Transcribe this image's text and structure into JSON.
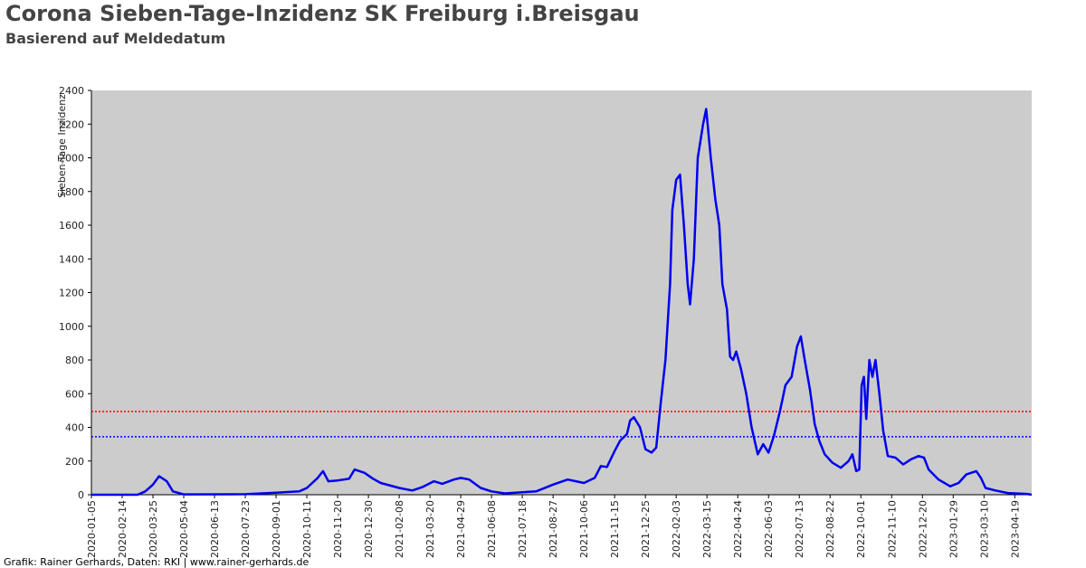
{
  "chart_data": {
    "type": "line",
    "title": "Corona Sieben-Tage-Inzidenz SK Freiburg i.Breisgau",
    "subtitle": "Basierend auf Meldedatum",
    "y_label": "Sieben-Tage Inzidenz",
    "footer": "Grafik: Rainer Gerhards, Daten: RKI | www.rainer-gerhards.de",
    "background": "#cccccc",
    "xlim": [
      "2020-01-05",
      "2023-05-11"
    ],
    "xticks": [
      "2020-01-05",
      "2020-02-14",
      "2020-03-25",
      "2020-05-04",
      "2020-06-13",
      "2020-07-23",
      "2020-09-01",
      "2020-10-11",
      "2020-11-20",
      "2020-12-30",
      "2021-02-08",
      "2021-03-20",
      "2021-04-29",
      "2021-06-08",
      "2021-07-18",
      "2021-08-27",
      "2021-10-06",
      "2021-11-15",
      "2021-12-25",
      "2022-02-03",
      "2022-03-15",
      "2022-04-24",
      "2022-06-03",
      "2022-07-13",
      "2022-08-22",
      "2022-10-01",
      "2022-11-10",
      "2022-12-20",
      "2023-01-29",
      "2023-03-10",
      "2023-04-19"
    ],
    "ylim": [
      0,
      2400
    ],
    "yticks": [
      0,
      200,
      400,
      600,
      800,
      1000,
      1200,
      1400,
      1600,
      1800,
      2000,
      2200,
      2400
    ],
    "reference_lines": [
      {
        "value": 494,
        "color": "#ff0000"
      },
      {
        "value": 344,
        "color": "#0000ff"
      }
    ],
    "x": [
      "2020-01-05",
      "2020-03-05",
      "2020-03-15",
      "2020-03-25",
      "2020-04-02",
      "2020-04-12",
      "2020-04-20",
      "2020-05-04",
      "2020-07-23",
      "2020-09-01",
      "2020-10-01",
      "2020-10-11",
      "2020-10-25",
      "2020-11-01",
      "2020-11-08",
      "2020-11-20",
      "2020-12-05",
      "2020-12-12",
      "2020-12-25",
      "2021-01-05",
      "2021-01-15",
      "2021-02-08",
      "2021-02-25",
      "2021-03-10",
      "2021-03-25",
      "2021-04-05",
      "2021-04-20",
      "2021-04-29",
      "2021-05-10",
      "2021-05-25",
      "2021-06-08",
      "2021-06-25",
      "2021-07-18",
      "2021-08-05",
      "2021-08-27",
      "2021-09-15",
      "2021-10-06",
      "2021-10-20",
      "2021-10-28",
      "2021-11-05",
      "2021-11-15",
      "2021-11-22",
      "2021-12-01",
      "2021-12-05",
      "2021-12-10",
      "2021-12-18",
      "2021-12-25",
      "2022-01-02",
      "2022-01-08",
      "2022-01-14",
      "2022-01-20",
      "2022-01-26",
      "2022-01-29",
      "2022-02-03",
      "2022-02-08",
      "2022-02-13",
      "2022-02-18",
      "2022-02-21",
      "2022-02-26",
      "2022-03-03",
      "2022-03-10",
      "2022-03-14",
      "2022-03-20",
      "2022-03-26",
      "2022-03-31",
      "2022-04-04",
      "2022-04-10",
      "2022-04-14",
      "2022-04-18",
      "2022-04-22",
      "2022-04-28",
      "2022-05-05",
      "2022-05-12",
      "2022-05-20",
      "2022-05-27",
      "2022-06-03",
      "2022-06-10",
      "2022-06-18",
      "2022-06-25",
      "2022-07-03",
      "2022-07-10",
      "2022-07-15",
      "2022-07-20",
      "2022-07-27",
      "2022-08-02",
      "2022-08-08",
      "2022-08-15",
      "2022-08-25",
      "2022-09-05",
      "2022-09-15",
      "2022-09-20",
      "2022-09-25",
      "2022-09-29",
      "2022-10-02",
      "2022-10-05",
      "2022-10-08",
      "2022-10-12",
      "2022-10-16",
      "2022-10-20",
      "2022-10-25",
      "2022-10-30",
      "2022-11-05",
      "2022-11-15",
      "2022-11-25",
      "2022-12-05",
      "2022-12-15",
      "2022-12-22",
      "2022-12-28",
      "2023-01-10",
      "2023-01-25",
      "2023-02-05",
      "2023-02-15",
      "2023-02-28",
      "2023-03-06",
      "2023-03-12",
      "2023-03-25",
      "2023-04-10",
      "2023-05-05",
      "2023-05-11"
    ],
    "series": [
      {
        "color": "#0000ee",
        "values": [
          0,
          0,
          20,
          60,
          110,
          80,
          20,
          2,
          3,
          12,
          20,
          40,
          100,
          140,
          80,
          85,
          95,
          150,
          130,
          95,
          70,
          40,
          25,
          45,
          80,
          65,
          90,
          100,
          90,
          40,
          20,
          8,
          15,
          20,
          60,
          90,
          70,
          100,
          170,
          165,
          260,
          320,
          360,
          440,
          460,
          400,
          270,
          250,
          280,
          550,
          800,
          1250,
          1690,
          1870,
          1900,
          1600,
          1250,
          1130,
          1400,
          2000,
          2200,
          2290,
          2000,
          1750,
          1600,
          1250,
          1100,
          820,
          800,
          850,
          750,
          600,
          400,
          240,
          300,
          250,
          350,
          500,
          650,
          700,
          880,
          940,
          800,
          620,
          420,
          320,
          240,
          190,
          160,
          200,
          240,
          140,
          150,
          650,
          700,
          450,
          800,
          700,
          800,
          600,
          380,
          230,
          220,
          180,
          210,
          230,
          220,
          150,
          90,
          50,
          70,
          120,
          140,
          100,
          40,
          25,
          10,
          5,
          0
        ]
      }
    ]
  }
}
